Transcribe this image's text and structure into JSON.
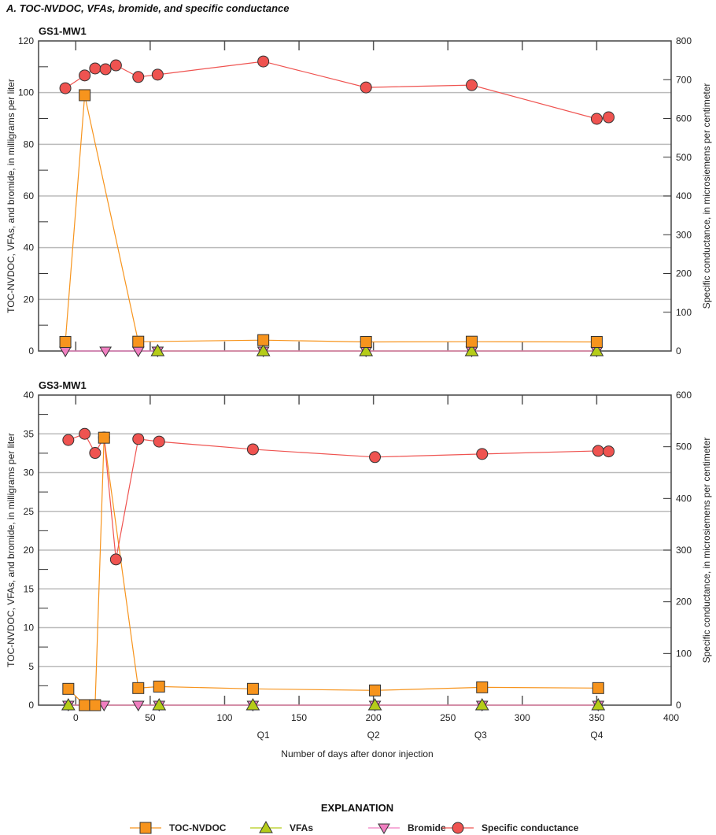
{
  "chart_data": [
    {
      "type": "line",
      "figure_title": "A. TOC-NVDOC, VFAs, bromide, and specific conductance",
      "title": "GS1-MW1",
      "ylabel": "TOC-NVDOC, VFAs, and bromide, in milligrams per liter",
      "y2label": "Specific conductance, in microsiemens per centimeter",
      "ylim": [
        0,
        120
      ],
      "yticks": [
        0,
        20,
        40,
        60,
        80,
        100,
        120
      ],
      "y2lim": [
        0,
        800
      ],
      "y2ticks": [
        0,
        100,
        200,
        300,
        400,
        500,
        600,
        700,
        800
      ],
      "xlim": [
        -25,
        400
      ],
      "grid": true,
      "series": [
        {
          "name": "TOC-NVDOC",
          "axis": "left",
          "x": [
            -7,
            6,
            42,
            126,
            195,
            266,
            350
          ],
          "y": [
            3.5,
            99,
            3.6,
            4.2,
            3.5,
            3.6,
            3.5
          ]
        },
        {
          "name": "VFAs",
          "axis": "left",
          "x": [
            55,
            126,
            195,
            266,
            350
          ],
          "y": [
            0,
            0,
            0,
            0,
            0
          ]
        },
        {
          "name": "Bromide",
          "axis": "left",
          "x": [
            -7,
            20,
            42,
            55,
            126,
            195,
            266,
            350
          ],
          "y": [
            0,
            0,
            0,
            0,
            0,
            0,
            0,
            0
          ]
        },
        {
          "name": "Specific conductance",
          "axis": "right",
          "x": [
            -7,
            6,
            13,
            20,
            27,
            42,
            55,
            126,
            195,
            266,
            350,
            358
          ],
          "y": [
            678,
            711,
            729,
            727,
            737,
            707,
            713,
            747,
            680,
            686,
            599,
            603
          ]
        }
      ]
    },
    {
      "type": "line",
      "title": "GS3-MW1",
      "ylabel": "TOC-NVDOC, VFAs, and bromide, in milligrams per liter",
      "y2label": "Specific conductance, in microsiemens per centimeter",
      "xlabel": "Number of days after donor injection",
      "ylim": [
        0,
        40
      ],
      "yticks": [
        0,
        5,
        10,
        15,
        20,
        25,
        30,
        35,
        40
      ],
      "y2lim": [
        0,
        600
      ],
      "y2ticks": [
        0,
        100,
        200,
        300,
        400,
        500,
        600
      ],
      "xlim": [
        -25,
        400
      ],
      "xticks": [
        0,
        50,
        100,
        150,
        200,
        250,
        300,
        350,
        400
      ],
      "quarter_labels": [
        {
          "label": "Q1",
          "x": 126
        },
        {
          "label": "Q2",
          "x": 200
        },
        {
          "label": "Q3",
          "x": 272
        },
        {
          "label": "Q4",
          "x": 350
        }
      ],
      "grid": true,
      "series": [
        {
          "name": "TOC-NVDOC",
          "axis": "left",
          "x": [
            -5,
            6,
            13,
            19,
            42,
            56,
            119,
            201,
            273,
            351
          ],
          "y": [
            2.1,
            0,
            0,
            34.5,
            2.2,
            2.4,
            2.1,
            1.9,
            2.3,
            2.2
          ]
        },
        {
          "name": "VFAs",
          "axis": "left",
          "x": [
            -5,
            56,
            119,
            201,
            273,
            351
          ],
          "y": [
            0,
            0,
            0,
            0,
            0,
            0
          ]
        },
        {
          "name": "Bromide",
          "axis": "left",
          "x": [
            -5,
            19,
            42,
            56,
            119,
            201,
            273,
            351
          ],
          "y": [
            0,
            0,
            0,
            0,
            0,
            0,
            0,
            0
          ]
        },
        {
          "name": "Specific conductance",
          "axis": "right",
          "x": [
            -5,
            6,
            13,
            19,
            27,
            42,
            56,
            119,
            201,
            273,
            351,
            358
          ],
          "y": [
            513,
            525,
            488,
            518,
            282,
            515,
            510,
            495,
            480,
            486,
            492,
            491
          ]
        }
      ]
    }
  ],
  "legend": {
    "title": "EXPLANATION",
    "items": [
      {
        "label": "TOC-NVDOC",
        "marker": "square",
        "color": "#f7941d"
      },
      {
        "label": "VFAs",
        "marker": "triangle-up",
        "color": "#b5cc18"
      },
      {
        "label": "Bromide",
        "marker": "triangle-down",
        "color": "#f07ec0"
      },
      {
        "label": "Specific conductance",
        "marker": "circle",
        "color": "#ef5350"
      }
    ]
  }
}
